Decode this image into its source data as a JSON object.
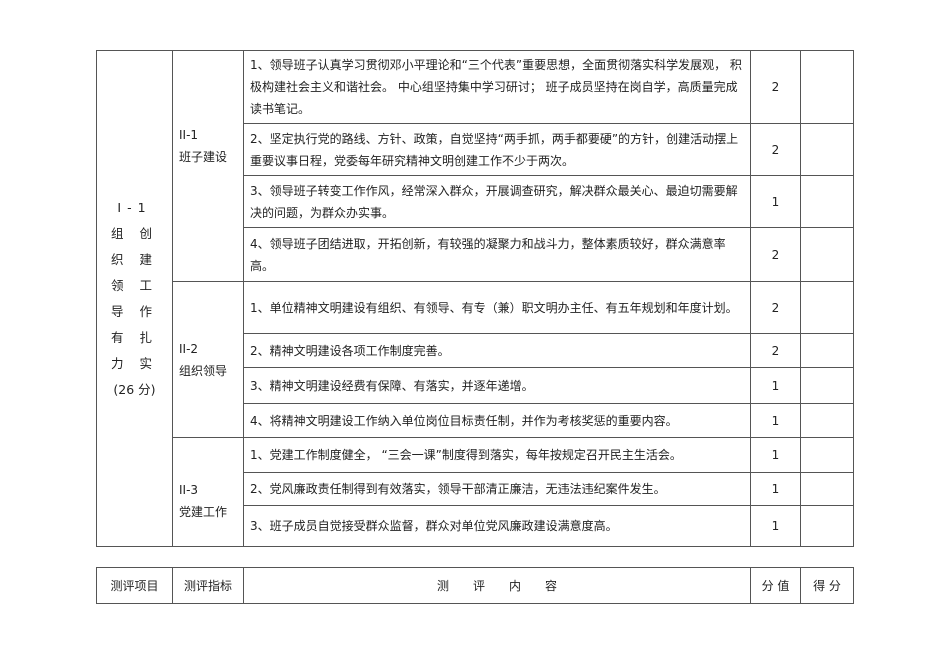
{
  "level1": {
    "code": "I-1",
    "title_lines": [
      "组 创",
      "织 建",
      "领 工",
      "导 作",
      "有 扎",
      "力 实"
    ],
    "score_note": "(26 分)"
  },
  "groups": [
    {
      "code": "II-1",
      "name": "班子建设",
      "items": [
        {
          "text": "1、领导班子认真学习贯彻邓小平理论和“三个代表”重要思想，全面贯彻落实科学发展观， 积极构建社会主义和谐社会。  中心组坚持集中学习研讨；  班子成员坚持在岗自学，高质量完成读书笔记。",
          "score": "2"
        },
        {
          "text": "2、坚定执行党的路线、方针、政策，自觉坚持“两手抓，两手都要硬”的方针，创建活动摆上重要议事日程，党委每年研究精神文明创建工作不少于两次。",
          "score": "2"
        },
        {
          "text": "3、领导班子转变工作作风，经常深入群众，开展调查研究，解决群众最关心、最迫切需要解决的问题，为群众办实事。",
          "score": "1"
        },
        {
          "text": "4、领导班子团结进取，开拓创新，有较强的凝聚力和战斗力，整体素质较好，群众满意率高。",
          "score": "2"
        }
      ]
    },
    {
      "code": "II-2",
      "name": "组织领导",
      "items": [
        {
          "text": "1、单位精神文明建设有组织、有领导、有专（兼）职文明办主任、有五年规划和年度计划。",
          "score": "2"
        },
        {
          "text": "2、精神文明建设各项工作制度完善。",
          "score": "2"
        },
        {
          "text": "3、精神文明建设经费有保障、有落实，并逐年递增。",
          "score": "1"
        },
        {
          "text": "4、将精神文明建设工作纳入单位岗位目标责任制，并作为考核奖惩的重要内容。",
          "score": "1"
        }
      ]
    },
    {
      "code": "II-3",
      "name": "党建工作",
      "items": [
        {
          "text": "1、党建工作制度健全，  “三会一课”制度得到落实，每年按规定召开民主生活会。",
          "score": "1"
        },
        {
          "text": "2、党风廉政责任制得到有效落实，领导干部清正廉洁，无违法违纪案件发生。",
          "score": "1"
        },
        {
          "text": "3、班子成员自觉接受群众监督，群众对单位党风廉政建设满意度高。",
          "score": "1"
        }
      ]
    }
  ],
  "header": {
    "item": "测评项目",
    "indicator": "测评指标",
    "content": "测　　评　　内　　容",
    "value": "分 值",
    "score": "得 分"
  }
}
